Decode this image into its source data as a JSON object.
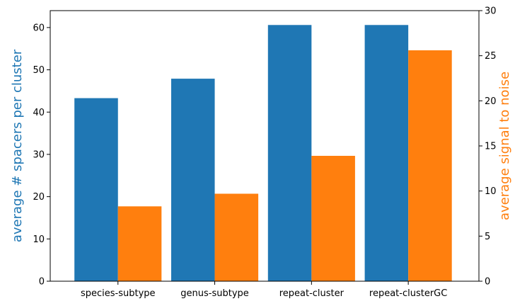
{
  "chart_data": {
    "type": "bar",
    "categories": [
      "species-subtype",
      "genus-subtype",
      "repeat-cluster",
      "repeat-clusterGC"
    ],
    "series": [
      {
        "values": [
          43.3,
          47.9,
          60.6,
          60.6
        ],
        "color": "#1f77b4",
        "axis": "left"
      },
      {
        "values": [
          8.3,
          9.7,
          13.9,
          25.6
        ],
        "color": "#ff7f0e",
        "axis": "right"
      }
    ],
    "ylabel_left": "average # spacers per cluster",
    "ylabel_right": "average signal to noise",
    "ylim_left": [
      0,
      64
    ],
    "ylim_right": [
      0,
      30
    ],
    "yticks_left": [
      "0",
      "10",
      "20",
      "30",
      "40",
      "50",
      "60"
    ],
    "yticks_right": [
      "0",
      "5",
      "10",
      "15",
      "20",
      "25",
      "30"
    ],
    "grid": false,
    "legend": "none"
  }
}
